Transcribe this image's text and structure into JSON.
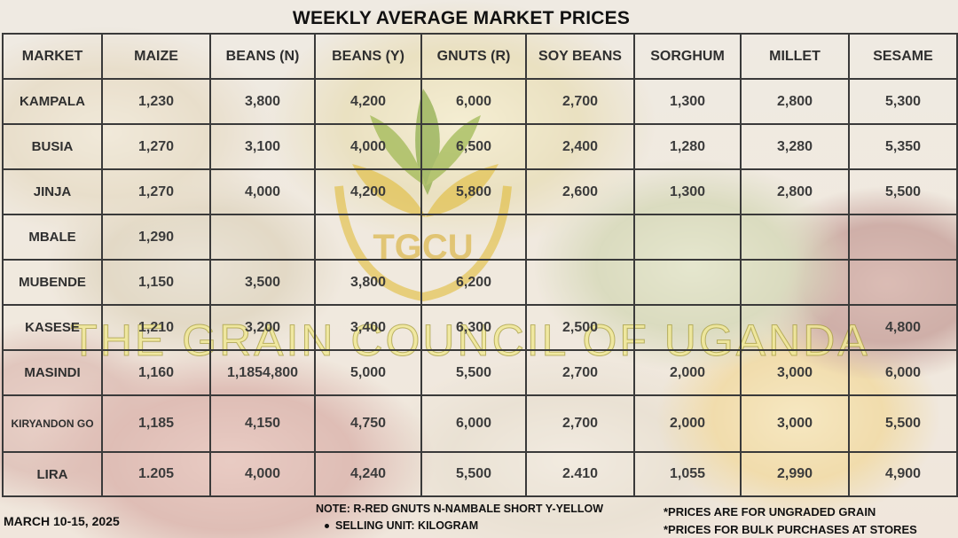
{
  "title": "WEEKLY AVERAGE MARKET PRICES",
  "logo_text": "TGCU",
  "watermark": "THE GRAIN COUNCIL OF UGANDA",
  "table": {
    "headers": [
      "MARKET",
      "MAIZE",
      "BEANS (N)",
      "BEANS (Y)",
      "GNUTS (R)",
      "SOY BEANS",
      "SORGHUM",
      "MILLET",
      "SESAME"
    ],
    "rows": [
      [
        "KAMPALA",
        "1,230",
        "3,800",
        "4,200",
        "6,000",
        "2,700",
        "1,300",
        "2,800",
        "5,300"
      ],
      [
        "BUSIA",
        "1,270",
        "3,100",
        "4,000",
        "6,500",
        "2,400",
        "1,280",
        "3,280",
        "5,350"
      ],
      [
        "JINJA",
        "1,270",
        "4,000",
        "4,200",
        "5,800",
        "2,600",
        "1,300",
        "2,800",
        "5,500"
      ],
      [
        "MBALE",
        "1,290",
        "",
        "",
        "",
        "",
        "",
        "",
        ""
      ],
      [
        "MUBENDE",
        "1,150",
        "3,500",
        "3,800",
        "6,200",
        "",
        "",
        "",
        ""
      ],
      [
        "KASESE",
        "1,210",
        "3,200",
        "3,400",
        "6,300",
        "2,500",
        "",
        "",
        "4,800"
      ],
      [
        "MASINDI",
        "1,160",
        "1,1854,800",
        "5,000",
        "5,500",
        "2,700",
        "2,000",
        "3,000",
        "6,000"
      ],
      [
        "KIRYANDON GO",
        "1,185",
        "4,150",
        "4,750",
        "6,000",
        "2,700",
        "2,000",
        "3,000",
        "5,500"
      ],
      [
        "LIRA",
        "1.205",
        "4,000",
        "4,240",
        "5,500",
        "2.410",
        "1,055",
        "2,990",
        "4,900"
      ]
    ]
  },
  "footer": {
    "date": "MARCH 10-15, 2025",
    "note": "NOTE: R-RED GNUTS  N-NAMBALE SHORT  Y-YELLOW",
    "selling_unit": "SELLING UNIT: KILOGRAM",
    "ungraded": "*PRICES ARE FOR UNGRADED GRAIN",
    "bulk": "*PRICES FOR BULK PURCHASES AT STORES"
  },
  "colors": {
    "grid": "#3a3a3a",
    "text": "#3c3c3c",
    "logo_green": "#7a9a2a",
    "logo_gold": "#e0b82c"
  }
}
